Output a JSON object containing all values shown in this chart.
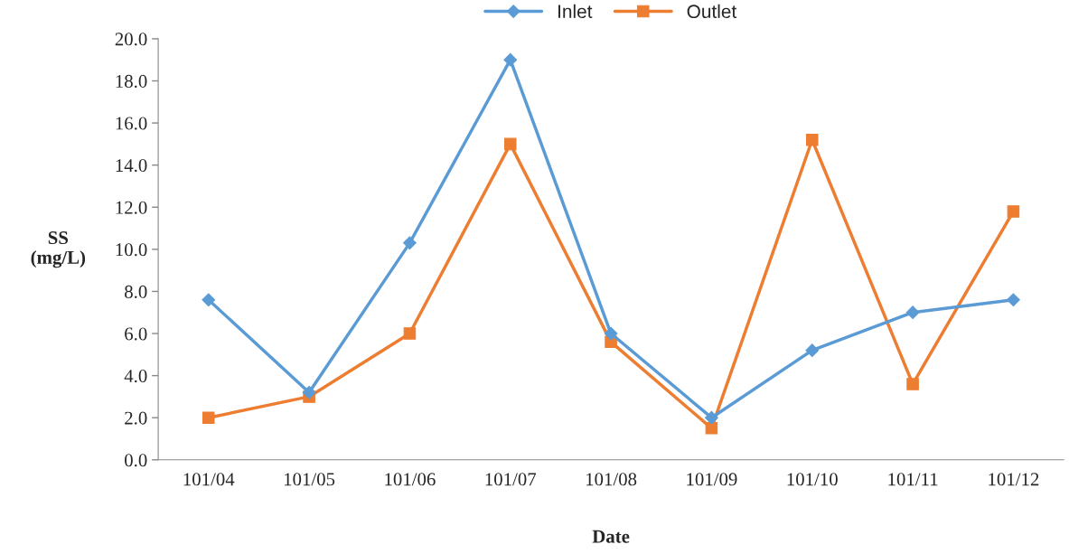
{
  "chart_data": {
    "type": "line",
    "xlabel": "Date",
    "ylabel": "SS\n(mg/L)",
    "categories": [
      "101/04",
      "101/05",
      "101/06",
      "101/07",
      "101/08",
      "101/09",
      "101/10",
      "101/11",
      "101/12"
    ],
    "series": [
      {
        "name": "Inlet",
        "color": "#5b9bd5",
        "marker": "diamond",
        "values": [
          7.6,
          3.2,
          10.3,
          19.0,
          6.0,
          2.0,
          5.2,
          7.0,
          7.6
        ]
      },
      {
        "name": "Outlet",
        "color": "#ed7d31",
        "marker": "square",
        "values": [
          2.0,
          3.0,
          6.0,
          15.0,
          5.6,
          1.5,
          15.2,
          3.6,
          11.8
        ]
      }
    ],
    "ylim": [
      0,
      20
    ],
    "yticks": [
      {
        "value": 0,
        "label": "0.0"
      },
      {
        "value": 2,
        "label": "2.0"
      },
      {
        "value": 4,
        "label": "4.0"
      },
      {
        "value": 6,
        "label": "6.0"
      },
      {
        "value": 8,
        "label": "8.0"
      },
      {
        "value": 10,
        "label": "10.0"
      },
      {
        "value": 12,
        "label": "12.0"
      },
      {
        "value": 14,
        "label": "14.0"
      },
      {
        "value": 16,
        "label": "16.0"
      },
      {
        "value": 18,
        "label": "18.0"
      },
      {
        "value": 20,
        "label": "20.0"
      }
    ],
    "grid": false,
    "legend": "top",
    "line_style": "solid"
  }
}
